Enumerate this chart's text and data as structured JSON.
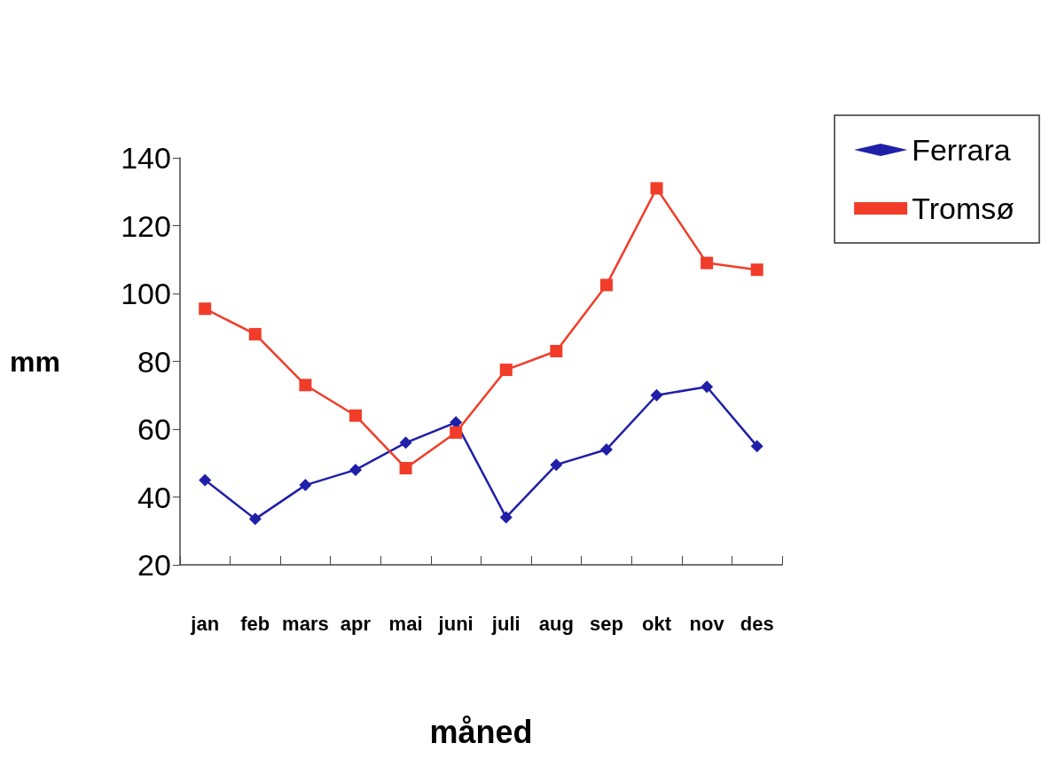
{
  "chart_data": {
    "type": "line",
    "xlabel": "måned",
    "ylabel": "mm",
    "categories": [
      "jan",
      "feb",
      "mars",
      "apr",
      "mai",
      "juni",
      "juli",
      "aug",
      "sep",
      "okt",
      "nov",
      "des"
    ],
    "series": [
      {
        "name": "Ferrara",
        "color": "#1f1fa8",
        "marker": "diamond",
        "values": [
          45,
          33.5,
          43.5,
          48,
          56,
          62,
          34,
          49.5,
          54,
          70,
          72.5,
          55
        ]
      },
      {
        "name": "Tromsø",
        "color": "#f03c28",
        "marker": "square",
        "values": [
          95.5,
          88,
          73,
          64,
          48.5,
          59,
          77.5,
          83,
          102.5,
          131,
          109,
          107
        ]
      }
    ],
    "ylim": [
      20,
      140
    ],
    "yticks": [
      20,
      40,
      60,
      80,
      100,
      120,
      140
    ],
    "grid": false,
    "legend": "top right"
  }
}
